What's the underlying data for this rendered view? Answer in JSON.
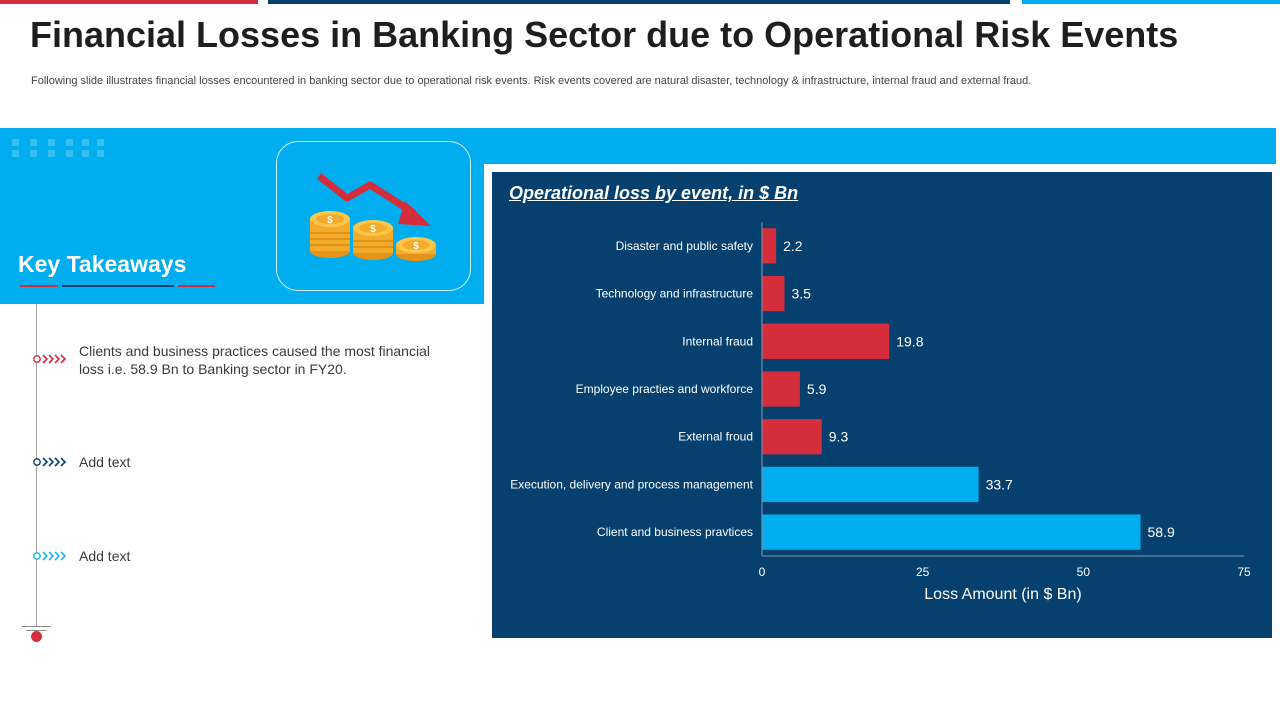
{
  "header": {
    "title": "Financial Losses in Banking Sector due to Operational Risk Events",
    "subtitle": "Following slide illustrates financial losses encountered in banking sector due to operational risk events. Risk events covered are natural disaster, technology & infrastructure, internal fraud and external fraud."
  },
  "colors": {
    "accent_red": "#d42e3c",
    "accent_blue": "#00adef",
    "navy": "#05406f"
  },
  "icons": {
    "illustration": "coins-with-falling-arrow-icon"
  },
  "key_takeaways": {
    "title": "Key Takeaways",
    "items": [
      {
        "text": "Clients and business practices caused the most financial loss i.e. 58.9 Bn to Banking sector in FY20.",
        "color": "#d42e3c"
      },
      {
        "text": "Add text",
        "color": "#05406f"
      },
      {
        "text": "Add text",
        "color": "#1fb6e8"
      }
    ]
  },
  "chart_data": {
    "type": "bar",
    "orientation": "horizontal",
    "title": "Operational loss by event, in $ Bn",
    "xlabel": "Loss Amount  (in $ Bn)",
    "ylabel": "",
    "xlim": [
      0,
      75
    ],
    "xticks": [
      0,
      25,
      50,
      75
    ],
    "grid": false,
    "categories": [
      "Disaster and public safety",
      "Technology and infrastructure",
      "Internal fraud",
      "Employee practies and workforce",
      "External froud",
      "Execution, delivery and process management",
      "Client and business pravtices"
    ],
    "values": [
      2.2,
      3.5,
      19.8,
      5.9,
      9.3,
      33.7,
      58.9
    ],
    "bar_colors": [
      "#d42e3c",
      "#d42e3c",
      "#d42e3c",
      "#d42e3c",
      "#d42e3c",
      "#00adef",
      "#00adef"
    ]
  }
}
